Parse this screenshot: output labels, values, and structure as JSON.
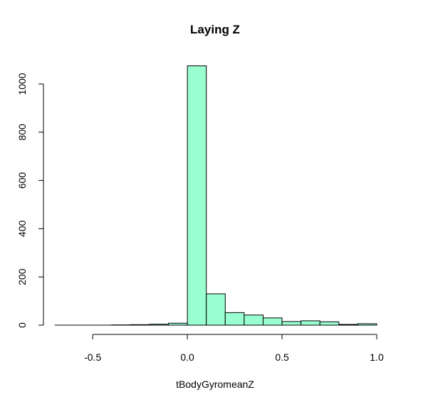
{
  "chart_data": {
    "type": "bar",
    "title": "Laying Z",
    "xlabel": "tBodyGyromeanZ",
    "ylabel": "",
    "bin_edges": [
      -0.7,
      -0.6,
      -0.5,
      -0.4,
      -0.3,
      -0.2,
      -0.1,
      0.0,
      0.1,
      0.2,
      0.3,
      0.4,
      0.5,
      0.6,
      0.7,
      0.8,
      0.9,
      1.0
    ],
    "values": [
      0,
      0,
      0,
      1,
      2,
      4,
      8,
      1075,
      130,
      52,
      42,
      30,
      15,
      18,
      14,
      3,
      6
    ],
    "xlim": [
      -0.7,
      1.0
    ],
    "ylim": [
      0,
      1080
    ],
    "xticks": [
      -0.5,
      0.0,
      0.5,
      1.0
    ],
    "xtick_labels": [
      "-0.5",
      "0.0",
      "0.5",
      "1.0"
    ],
    "yticks": [
      0,
      200,
      400,
      600,
      800,
      1000
    ],
    "ytick_labels": [
      "0",
      "200",
      "400",
      "600",
      "800",
      "1000"
    ],
    "bar_color": "#99ffd1",
    "ylabel_color": "#7fffd4",
    "grid": false
  }
}
